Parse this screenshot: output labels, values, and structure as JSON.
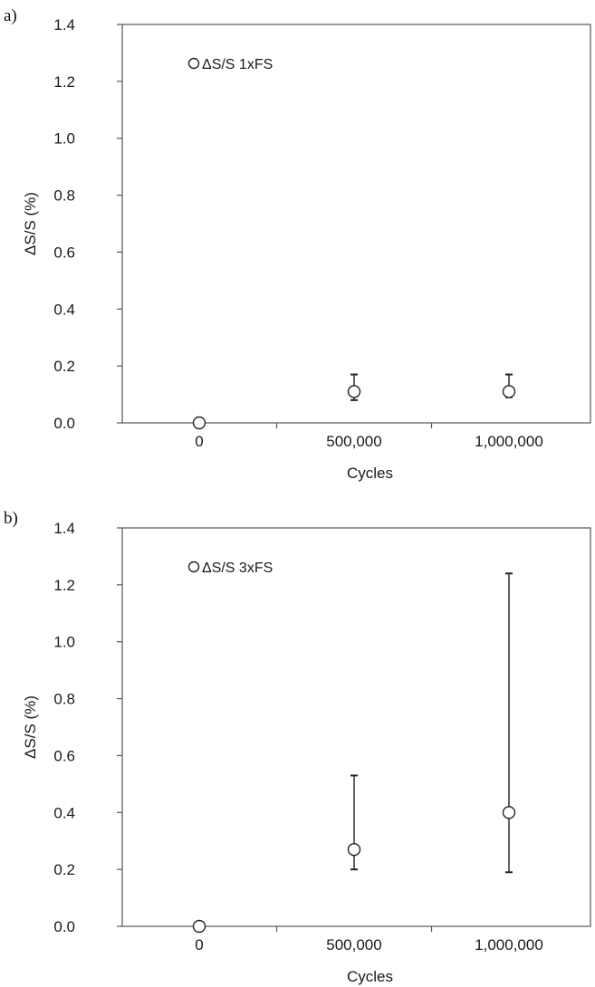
{
  "chart_data": [
    {
      "type": "scatter",
      "panel_label": "a)",
      "title": "",
      "xlabel": "Cycles",
      "ylabel": "ΔS/S (%)",
      "categories": [
        "0",
        "500,000",
        "1,000,000"
      ],
      "ylim": [
        0,
        1.4
      ],
      "yticks": [
        "0.0",
        "0.2",
        "0.4",
        "0.6",
        "0.8",
        "1.0",
        "1.2",
        "1.4"
      ],
      "grid": false,
      "legend_position": "top-left",
      "series": [
        {
          "name": "ΔS/S 1xFS",
          "values": [
            0.0,
            0.11,
            0.11
          ],
          "error_low": [
            null,
            0.08,
            0.09
          ],
          "error_high": [
            null,
            0.17,
            0.17
          ]
        }
      ],
      "colors": {
        "marker_fill": "#ffffff",
        "marker_stroke": "#222222",
        "axis": "#555555"
      }
    },
    {
      "type": "scatter",
      "panel_label": "b)",
      "title": "",
      "xlabel": "Cycles",
      "ylabel": "ΔS/S (%)",
      "categories": [
        "0",
        "500,000",
        "1,000,000"
      ],
      "ylim": [
        0,
        1.4
      ],
      "yticks": [
        "0.0",
        "0.2",
        "0.4",
        "0.6",
        "0.8",
        "1.0",
        "1.2",
        "1.4"
      ],
      "grid": false,
      "legend_position": "top-left",
      "series": [
        {
          "name": "ΔS/S 3xFS",
          "values": [
            0.0,
            0.27,
            0.4
          ],
          "error_low": [
            null,
            0.2,
            0.19
          ],
          "error_high": [
            null,
            0.53,
            1.24
          ]
        }
      ],
      "colors": {
        "marker_fill": "#ffffff",
        "marker_stroke": "#222222",
        "axis": "#555555"
      }
    }
  ]
}
